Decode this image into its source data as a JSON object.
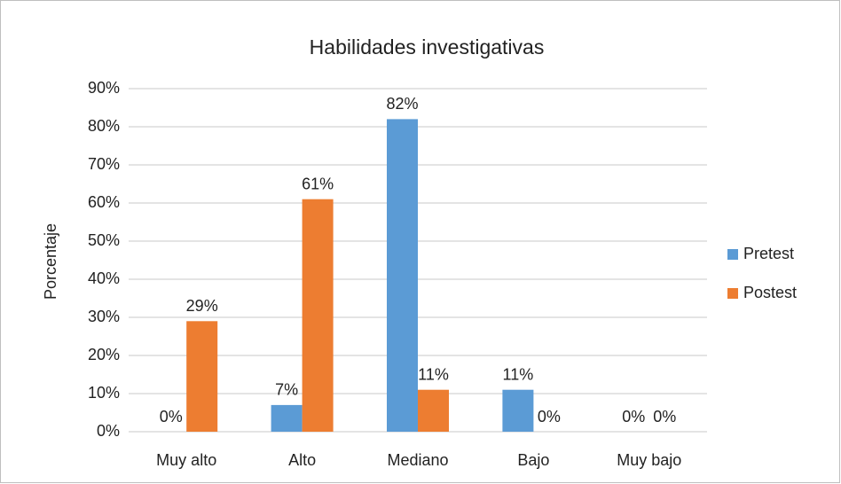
{
  "chart_data": {
    "type": "bar",
    "title": "Habilidades investigativas",
    "ylabel": "Porcentaje",
    "categories": [
      "Muy alto",
      "Alto",
      "Mediano",
      "Bajo",
      "Muy bajo"
    ],
    "series": [
      {
        "name": "Pretest",
        "color": "#5b9bd5",
        "values": [
          0,
          7,
          82,
          11,
          0
        ],
        "value_labels": [
          "0%",
          "7%",
          "82%",
          "11%",
          "0%"
        ]
      },
      {
        "name": "Postest",
        "color": "#ed7d31",
        "values": [
          29,
          61,
          11,
          0,
          0
        ],
        "value_labels": [
          "29%",
          "61%",
          "11%",
          "0%",
          "0%"
        ]
      }
    ],
    "ylim": [
      0,
      90
    ],
    "yticks": [
      {
        "value": 0,
        "label": "0%"
      },
      {
        "value": 10,
        "label": "10%"
      },
      {
        "value": 20,
        "label": "20%"
      },
      {
        "value": 30,
        "label": "30%"
      },
      {
        "value": 40,
        "label": "40%"
      },
      {
        "value": 50,
        "label": "50%"
      },
      {
        "value": 60,
        "label": "60%"
      },
      {
        "value": 70,
        "label": "70%"
      },
      {
        "value": 80,
        "label": "80%"
      },
      {
        "value": 90,
        "label": "90%"
      }
    ],
    "grid": true,
    "legend": "right"
  }
}
